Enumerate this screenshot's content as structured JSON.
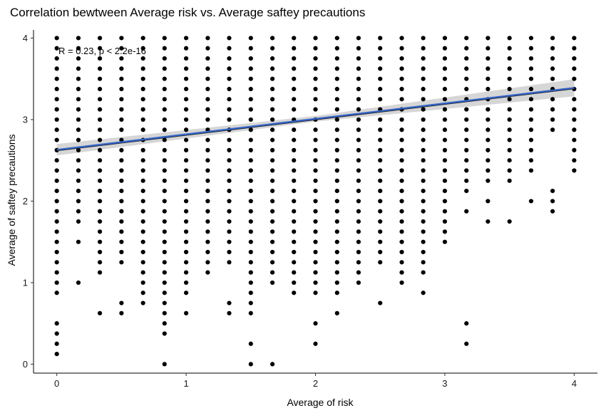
{
  "chart_data": {
    "type": "scatter",
    "title": "Correlation bewtween Average risk vs. Average saftey precautions",
    "xlabel": "Average of risk",
    "ylabel": "Average of saftey precautions",
    "xlim": [
      -0.18,
      4.18
    ],
    "ylim": [
      -0.11,
      4.1
    ],
    "x_ticks": [
      "0",
      "1",
      "2",
      "3",
      "4"
    ],
    "y_ticks": [
      "0",
      "1",
      "2",
      "3",
      "4"
    ],
    "grid": false,
    "annotation": "R = 0.23, p < 2.2e-16",
    "point_color": "#000000",
    "regression": {
      "x_start": 0,
      "y_start": 2.63,
      "x_end": 4,
      "y_end": 3.39,
      "line_color": "#3366cc",
      "band_color": "#c8c8c8"
    },
    "columns": [
      {
        "x": 0,
        "y_min": 0.875,
        "y_max": 4,
        "extra_y": [
          0.125,
          0.25,
          0.375,
          0.5
        ]
      },
      {
        "x": 0.167,
        "y_min": 1.75,
        "y_max": 4,
        "extra_y": [
          1.0,
          1.5
        ]
      },
      {
        "x": 0.333,
        "y_min": 1.125,
        "y_max": 4,
        "extra_y": [
          0.625
        ]
      },
      {
        "x": 0.5,
        "y_min": 1.25,
        "y_max": 4,
        "extra_y": [
          0.625,
          0.75
        ]
      },
      {
        "x": 0.667,
        "y_min": 0.75,
        "y_max": 4,
        "extra_y": []
      },
      {
        "x": 0.833,
        "y_min": 0.375,
        "y_max": 4,
        "extra_y": [
          0.0
        ]
      },
      {
        "x": 1.0,
        "y_min": 0.875,
        "y_max": 4,
        "extra_y": [
          0.625
        ]
      },
      {
        "x": 1.167,
        "y_min": 1.125,
        "y_max": 4,
        "extra_y": []
      },
      {
        "x": 1.333,
        "y_min": 1.25,
        "y_max": 4,
        "extra_y": [
          0.625,
          0.75
        ]
      },
      {
        "x": 1.5,
        "y_min": 0.625,
        "y_max": 4,
        "extra_y": [
          0.0,
          0.25
        ]
      },
      {
        "x": 1.667,
        "y_min": 1.0,
        "y_max": 4,
        "extra_y": [
          0.0
        ]
      },
      {
        "x": 1.833,
        "y_min": 0.875,
        "y_max": 4,
        "extra_y": []
      },
      {
        "x": 2.0,
        "y_min": 0.875,
        "y_max": 4,
        "extra_y": [
          0.25,
          0.5
        ]
      },
      {
        "x": 2.167,
        "y_min": 0.875,
        "y_max": 4,
        "extra_y": [
          0.625
        ]
      },
      {
        "x": 2.333,
        "y_min": 1.0,
        "y_max": 4,
        "extra_y": []
      },
      {
        "x": 2.5,
        "y_min": 1.25,
        "y_max": 4,
        "extra_y": [
          0.75
        ]
      },
      {
        "x": 2.667,
        "y_min": 1.0,
        "y_max": 4,
        "extra_y": []
      },
      {
        "x": 2.833,
        "y_min": 1.125,
        "y_max": 4,
        "extra_y": [
          0.875
        ]
      },
      {
        "x": 3.0,
        "y_min": 1.5,
        "y_max": 4,
        "extra_y": []
      },
      {
        "x": 3.167,
        "y_min": 2.125,
        "y_max": 4,
        "extra_y": [
          1.875,
          0.5,
          0.25
        ]
      },
      {
        "x": 3.333,
        "y_min": 2.25,
        "y_max": 4,
        "extra_y": [
          2.0,
          1.75
        ]
      },
      {
        "x": 3.5,
        "y_min": 2.375,
        "y_max": 4,
        "extra_y": [
          2.25,
          1.75
        ]
      },
      {
        "x": 3.667,
        "y_min": 2.375,
        "y_max": 4,
        "extra_y": [
          2.0
        ]
      },
      {
        "x": 3.833,
        "y_min": 2.875,
        "y_max": 4,
        "extra_y": [
          2.125,
          2.0,
          1.875
        ]
      },
      {
        "x": 4.0,
        "y_min": 2.375,
        "y_max": 4,
        "extra_y": []
      }
    ],
    "y_step": 0.125
  }
}
